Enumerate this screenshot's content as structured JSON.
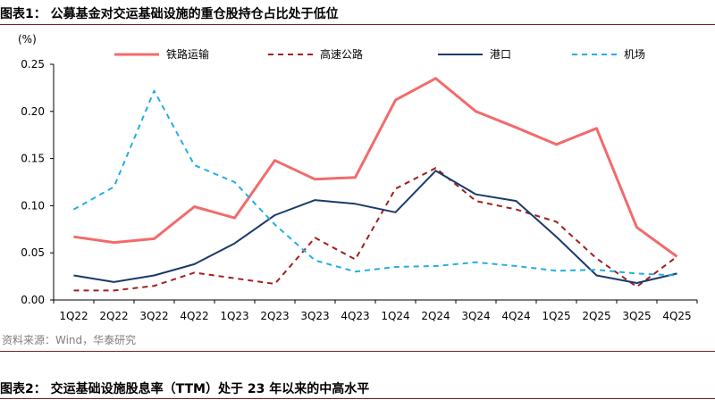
{
  "header": {
    "title": "图表1：  公募基金对交运基础设施的重仓股持仓占比处于低位"
  },
  "footer": {
    "source": "资料来源：Wind，华泰研究",
    "next_title": "图表2：  交运基础设施股息率（TTM）处于 23 年以来的中高水平"
  },
  "chart_data": {
    "type": "line",
    "unit_label": "(%)",
    "categories": [
      "1Q22",
      "2Q22",
      "3Q22",
      "4Q22",
      "1Q23",
      "2Q23",
      "3Q23",
      "4Q23",
      "1Q24",
      "2Q24",
      "3Q24",
      "4Q24",
      "1Q25",
      "2Q25",
      "3Q25",
      "4Q25"
    ],
    "ylim": [
      0,
      0.25
    ],
    "yticks": [
      "0.00",
      "0.05",
      "0.10",
      "0.15",
      "0.20",
      "0.25"
    ],
    "grid": false,
    "legend_position": "top",
    "series": [
      {
        "name": "铁路运输",
        "color": "#f26b6b",
        "style": "solid",
        "values": [
          0.067,
          0.061,
          0.065,
          0.099,
          0.087,
          0.148,
          0.128,
          0.13,
          0.212,
          0.235,
          0.2,
          0.183,
          0.165,
          0.182,
          0.077,
          0.046
        ]
      },
      {
        "name": "高速公路",
        "color": "#a31e1e",
        "style": "dashed",
        "values": [
          0.01,
          0.01,
          0.015,
          0.029,
          0.023,
          0.017,
          0.066,
          0.043,
          0.118,
          0.14,
          0.105,
          0.096,
          0.083,
          0.044,
          0.014,
          0.046
        ]
      },
      {
        "name": "港口",
        "color": "#1a3a6b",
        "style": "solid",
        "values": [
          0.026,
          0.019,
          0.026,
          0.038,
          0.06,
          0.09,
          0.106,
          0.102,
          0.093,
          0.137,
          0.112,
          0.105,
          0.067,
          0.026,
          0.018,
          0.028
        ]
      },
      {
        "name": "机场",
        "color": "#22aee3",
        "style": "dashed",
        "values": [
          0.096,
          0.12,
          0.222,
          0.143,
          0.125,
          0.08,
          0.042,
          0.03,
          0.035,
          0.036,
          0.04,
          0.036,
          0.031,
          0.032,
          0.028,
          0.026
        ]
      }
    ]
  }
}
